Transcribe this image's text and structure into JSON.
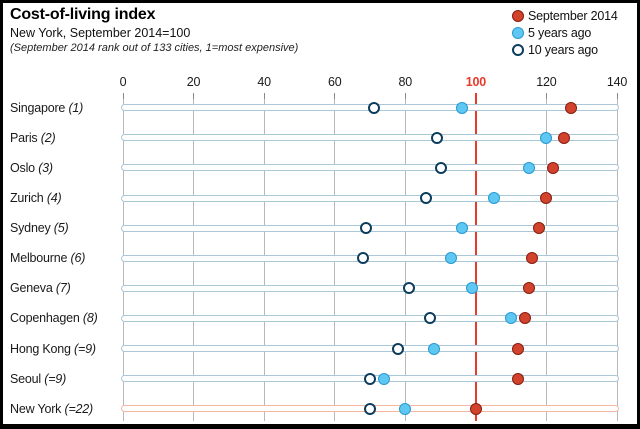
{
  "header": {
    "title": "Cost-of-living index",
    "subtitle": "New York, September 2014=100",
    "note": "(September 2014 rank out of 133 cities, 1=most expensive)"
  },
  "legend": [
    {
      "label": "September 2014",
      "marker": "red-filled-dot"
    },
    {
      "label": "5 years ago",
      "marker": "blue-filled-dot"
    },
    {
      "label": "10 years ago",
      "marker": "open-navy-dot"
    }
  ],
  "colors": {
    "september_2014_fill": "#d2432e",
    "september_2014_stroke": "#871c0e",
    "five_years_fill": "#5ec8f2",
    "five_years_stroke": "#2898d0",
    "ten_years_stroke": "#0d3d5c",
    "reference_line": "#e8392b",
    "gridline": "#b8b8b8",
    "row_track": "#abc8d9",
    "highlight_row_track": "#f3b7a4",
    "frame": "#000000"
  },
  "chart_data": {
    "type": "scatter",
    "variant": "horizontal-dot-plot",
    "title": "Cost-of-living index",
    "subtitle": "New York, September 2014=100",
    "note": "(September 2014 rank out of 133 cities, 1=most expensive)",
    "x_axis": {
      "range": [
        0,
        140
      ],
      "ticks": [
        0,
        20,
        40,
        60,
        80,
        100,
        120,
        140
      ],
      "highlight_tick": 100,
      "grid": true,
      "reference_line": 100
    },
    "legend_position": "top-right",
    "series_order_bottom_to_top": [
      "10 years ago",
      "5 years ago",
      "September 2014"
    ],
    "series": [
      {
        "name": "September 2014",
        "key": "september_2014",
        "style": "red-dot"
      },
      {
        "name": "5 years ago",
        "key": "five_years_ago",
        "style": "blue-dot"
      },
      {
        "name": "10 years ago",
        "key": "ten_years_ago",
        "style": "open-dot"
      }
    ],
    "rows": [
      {
        "city": "Singapore",
        "rank": "(1)",
        "september_2014": 127,
        "five_years_ago": 96,
        "ten_years_ago": 71,
        "highlight": false
      },
      {
        "city": "Paris",
        "rank": "(2)",
        "september_2014": 125,
        "five_years_ago": 120,
        "ten_years_ago": 89,
        "highlight": false
      },
      {
        "city": "Oslo",
        "rank": "(3)",
        "september_2014": 122,
        "five_years_ago": 115,
        "ten_years_ago": 90,
        "highlight": false
      },
      {
        "city": "Zurich",
        "rank": "(4)",
        "september_2014": 120,
        "five_years_ago": 105,
        "ten_years_ago": 86,
        "highlight": false
      },
      {
        "city": "Sydney",
        "rank": "(5)",
        "september_2014": 118,
        "five_years_ago": 96,
        "ten_years_ago": 69,
        "highlight": false
      },
      {
        "city": "Melbourne",
        "rank": "(6)",
        "september_2014": 116,
        "five_years_ago": 93,
        "ten_years_ago": 68,
        "highlight": false
      },
      {
        "city": "Geneva",
        "rank": "(7)",
        "september_2014": 115,
        "five_years_ago": 99,
        "ten_years_ago": 81,
        "highlight": false
      },
      {
        "city": "Copenhagen",
        "rank": "(8)",
        "september_2014": 114,
        "five_years_ago": 110,
        "ten_years_ago": 87,
        "highlight": false
      },
      {
        "city": "Hong Kong",
        "rank": "(=9)",
        "september_2014": 112,
        "five_years_ago": 88,
        "ten_years_ago": 78,
        "highlight": false
      },
      {
        "city": "Seoul",
        "rank": "(=9)",
        "september_2014": 112,
        "five_years_ago": 74,
        "ten_years_ago": 70,
        "highlight": false
      },
      {
        "city": "New York",
        "rank": "(=22)",
        "september_2014": 100,
        "five_years_ago": 80,
        "ten_years_ago": 70,
        "highlight": true
      }
    ]
  }
}
